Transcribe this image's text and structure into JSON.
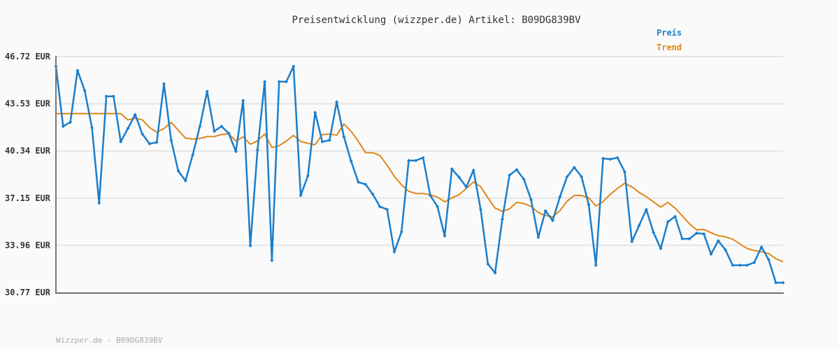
{
  "chart_data": {
    "type": "line",
    "title": "Preisentwicklung (wizzper.de) Artikel: B09DG839BV",
    "footer": "Wizzper.de - B09DG839BV",
    "xlabel": "",
    "ylabel": "",
    "ylim": [
      30.77,
      46.72
    ],
    "yticks": [
      "46.72 EUR",
      "43.53 EUR",
      "40.34 EUR",
      "37.15 EUR",
      "33.96 EUR",
      "30.77 EUR"
    ],
    "ytick_values": [
      46.72,
      43.53,
      40.34,
      37.15,
      33.96,
      30.77
    ],
    "grid": true,
    "legend_position": "top-right",
    "series": [
      {
        "name": "Preis",
        "color": "#1a7ecb",
        "markers": true,
        "values": [
          46.06,
          42.0,
          42.28,
          45.78,
          44.41,
          41.91,
          36.81,
          44.03,
          44.03,
          40.96,
          41.86,
          42.8,
          41.48,
          40.82,
          40.92,
          44.88,
          41.06,
          38.98,
          38.32,
          40.07,
          42.0,
          44.36,
          41.67,
          42.0,
          41.53,
          40.3,
          43.75,
          33.93,
          40.4,
          45.02,
          32.94,
          45.02,
          45.02,
          46.06,
          37.33,
          38.65,
          42.94,
          40.96,
          41.06,
          43.65,
          41.29,
          39.64,
          38.23,
          38.08,
          37.42,
          36.57,
          36.38,
          33.51,
          34.87,
          39.69,
          39.69,
          39.88,
          37.33,
          36.57,
          34.59,
          39.12,
          38.56,
          37.9,
          39.03,
          36.38,
          32.7,
          32.09,
          35.72,
          38.7,
          39.07,
          38.42,
          37.04,
          34.5,
          36.29,
          35.63,
          37.23,
          38.6,
          39.22,
          38.6,
          36.72,
          32.61,
          39.83,
          39.78,
          39.88,
          38.93,
          34.21,
          35.3,
          36.38,
          34.83,
          33.74,
          35.54,
          35.91,
          34.4,
          34.4,
          34.78,
          34.73,
          33.36,
          34.26,
          33.65,
          32.61,
          32.61,
          32.61,
          32.8,
          33.84,
          32.99,
          31.43,
          31.43
        ]
      },
      {
        "name": "Trend",
        "color": "#e0861a",
        "markers": false,
        "values": [
          42.86,
          42.86,
          42.86,
          42.86,
          42.86,
          42.86,
          42.86,
          42.86,
          42.86,
          42.86,
          42.44,
          42.55,
          42.44,
          41.92,
          41.61,
          41.85,
          42.27,
          41.73,
          41.21,
          41.14,
          41.18,
          41.31,
          41.31,
          41.45,
          41.5,
          41.01,
          41.29,
          40.79,
          41.02,
          41.48,
          40.58,
          40.69,
          41.01,
          41.39,
          40.98,
          40.85,
          40.76,
          41.45,
          41.48,
          41.4,
          42.16,
          41.66,
          40.98,
          40.22,
          40.22,
          40.03,
          39.37,
          38.62,
          38.04,
          37.61,
          37.46,
          37.46,
          37.36,
          37.22,
          36.9,
          37.17,
          37.38,
          37.8,
          38.24,
          37.93,
          37.17,
          36.47,
          36.26,
          36.42,
          36.86,
          36.78,
          36.59,
          36.18,
          35.97,
          35.88,
          36.3,
          36.94,
          37.33,
          37.33,
          37.17,
          36.61,
          36.92,
          37.41,
          37.8,
          38.15,
          37.91,
          37.53,
          37.25,
          36.89,
          36.54,
          36.86,
          36.47,
          35.95,
          35.41,
          35.0,
          35.03,
          34.81,
          34.61,
          34.53,
          34.37,
          34.06,
          33.74,
          33.61,
          33.52,
          33.4,
          33.05,
          32.85
        ]
      }
    ]
  }
}
